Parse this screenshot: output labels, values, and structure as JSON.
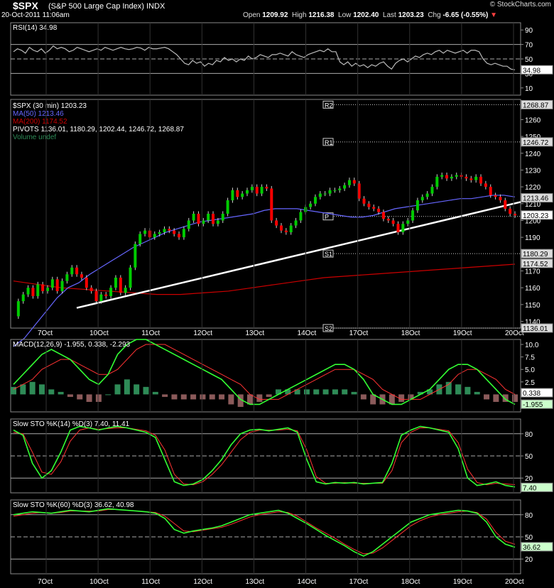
{
  "header": {
    "symbol": "$SPX",
    "subtitle": "(S&P 500 Large Cap Index) INDX",
    "datetime": "20-Oct-2011 11:06am",
    "watermark": "© StockCharts.com",
    "open_label": "Open",
    "open": "1209.92",
    "high_label": "High",
    "high": "1216.38",
    "low_label": "Low",
    "low": "1202.40",
    "last_label": "Last",
    "last": "1203.23",
    "chg_label": "Chg",
    "chg": "-6.65 (-0.55%)"
  },
  "colors": {
    "price_up": "#00cc00",
    "price_down": "#ff0000",
    "ma50": "#6666ff",
    "ma200": "#cc0000",
    "trendline": "#ffffff",
    "macd": "#33ff33",
    "signal": "#ff3333",
    "hist_pos": "#2e8b57",
    "hist_neg": "#8b5a5a"
  },
  "chart_data": [
    {
      "type": "line",
      "title": "RSI(14) 34.98",
      "ylim": [
        0,
        100
      ],
      "yticks": [
        10,
        30,
        50,
        70,
        90
      ],
      "last_label": "34.98",
      "series": [
        {
          "name": "RSI(14)",
          "values": [
            60,
            64,
            62,
            58,
            66,
            62,
            60,
            64,
            58,
            62,
            68,
            64,
            66,
            64,
            60,
            62,
            66,
            64,
            62,
            60,
            62,
            64,
            62,
            66,
            64,
            62,
            64,
            66,
            64,
            63,
            64,
            66,
            65,
            62,
            66,
            64,
            64,
            65,
            66,
            64,
            60,
            56,
            50,
            44,
            42,
            48,
            44,
            46,
            40,
            44,
            42,
            48,
            46,
            52,
            48,
            50,
            46,
            50,
            48,
            54,
            50,
            52,
            56,
            54,
            52,
            56,
            56,
            58,
            56,
            54,
            60,
            56,
            54,
            52,
            56,
            58,
            60,
            62,
            60,
            64,
            60,
            60,
            46,
            42,
            46,
            40,
            44,
            40,
            42,
            38,
            42,
            40,
            44,
            46,
            40,
            36,
            44,
            48,
            50,
            46,
            50,
            54,
            52,
            56,
            58,
            56,
            60,
            62,
            58,
            62,
            60,
            58,
            60,
            62,
            58,
            62,
            62,
            60,
            50,
            44,
            42,
            44,
            42,
            40,
            40,
            36,
            35
          ]
        }
      ]
    },
    {
      "type": "line",
      "title": "$SPX (30 min) 1203.23",
      "legend": [
        "MA(50) 1213.46",
        "MA(200) 1174.52",
        "PIVOTS 1136.01, 1180.29, 1202.44, 1246.72, 1268.87",
        "Volume undef"
      ],
      "ylim": [
        1136,
        1272
      ],
      "yticks": [
        1140,
        1150,
        1160,
        1170,
        1180,
        1190,
        1200,
        1210,
        1220,
        1230,
        1240,
        1250,
        1260
      ],
      "categories": [
        "7Oct",
        "10Oct",
        "11Oct",
        "12Oct",
        "13Oct",
        "14Oct",
        "17Oct",
        "18Oct",
        "19Oct",
        "20Oct"
      ],
      "price_values": [
        1143,
        1152,
        1156,
        1160,
        1155,
        1162,
        1158,
        1160,
        1165,
        1158,
        1164,
        1168,
        1172,
        1168,
        1166,
        1160,
        1158,
        1152,
        1156,
        1155,
        1160,
        1166,
        1157,
        1160,
        1172,
        1186,
        1192,
        1194,
        1190,
        1192,
        1193,
        1195,
        1194,
        1192,
        1190,
        1195,
        1200,
        1204,
        1198,
        1200,
        1204,
        1198,
        1200,
        1204,
        1212,
        1218,
        1214,
        1216,
        1218,
        1220,
        1216,
        1220,
        1219,
        1200,
        1197,
        1194,
        1193,
        1197,
        1200,
        1205,
        1208,
        1210,
        1214,
        1216,
        1216,
        1218,
        1218,
        1219,
        1221,
        1224,
        1222,
        1213,
        1210,
        1208,
        1207,
        1205,
        1201,
        1200,
        1198,
        1193,
        1198,
        1200,
        1206,
        1212,
        1214,
        1216,
        1220,
        1226,
        1227,
        1225,
        1226,
        1227,
        1226,
        1225,
        1224,
        1226,
        1222,
        1220,
        1215,
        1214,
        1212,
        1207,
        1204,
        1203
      ],
      "ma50_values": [
        1125,
        1130,
        1138,
        1146,
        1154,
        1160,
        1163,
        1168,
        1172,
        1176,
        1180,
        1184,
        1187,
        1190,
        1193,
        1195,
        1197,
        1199,
        1200,
        1201,
        1202,
        1203,
        1204,
        1206,
        1207,
        1207,
        1207,
        1206,
        1205,
        1204,
        1203,
        1202,
        1202,
        1203,
        1205,
        1207,
        1208,
        1209,
        1210,
        1211,
        1212,
        1213,
        1213,
        1214,
        1215,
        1215,
        1214
      ],
      "ma200_values": [
        1164,
        1162,
        1160,
        1159,
        1158,
        1157,
        1156,
        1156,
        1157,
        1158,
        1160,
        1162,
        1164,
        1166,
        1167,
        1168,
        1169,
        1170,
        1171,
        1172,
        1173,
        1174
      ],
      "pivots": {
        "S2": 1136.01,
        "S1": 1180.29,
        "P": 1202.44,
        "R1": 1246.72,
        "R2": 1268.87
      },
      "pivot_labels": [
        "S2",
        "S1",
        "P",
        "R1",
        "R2"
      ],
      "trendline": [
        [
          0,
          1148
        ],
        [
          1,
          1211
        ]
      ],
      "right_labels": [
        "1268.87",
        "1246.72",
        "1213.46",
        "1203.23",
        "1180.29",
        "1174.52",
        "1136.01"
      ]
    },
    {
      "type": "line",
      "title": "MACD(12,26,9) -1.955, 0.338, -2.293",
      "ylim": [
        -3.5,
        11
      ],
      "yticks": [
        0.0,
        2.5,
        5.0,
        7.5,
        10.0
      ],
      "macd_values": [
        2,
        4,
        6,
        8,
        9,
        8,
        7,
        5,
        3,
        2,
        4,
        8,
        10,
        11,
        11,
        10,
        9,
        8,
        7,
        6,
        5,
        4,
        3,
        1,
        -1,
        -2,
        -2,
        -1,
        0,
        1,
        2,
        3,
        4,
        5,
        6,
        6,
        5,
        3,
        0,
        -1,
        -2,
        -2,
        -1,
        0,
        1,
        3,
        5,
        6,
        6,
        5,
        3,
        1,
        -1,
        -2
      ],
      "signal_values": [
        1,
        2,
        3,
        5,
        6,
        7,
        7,
        6,
        5,
        4,
        4,
        5,
        7,
        9,
        10,
        10,
        10,
        9,
        8,
        7,
        6,
        5,
        4,
        3,
        2,
        0,
        -1,
        -1,
        -1,
        0,
        1,
        2,
        3,
        4,
        5,
        5,
        5,
        4,
        3,
        1,
        0,
        -1,
        -1,
        -1,
        0,
        1,
        2,
        4,
        5,
        5,
        4,
        3,
        1,
        0
      ],
      "hist_values": [
        1.5,
        2,
        2.5,
        2,
        1,
        0.5,
        -0.5,
        -1,
        -1.5,
        -1.5,
        0,
        2,
        3,
        2,
        1.5,
        0.5,
        -0.5,
        -1,
        -1,
        -1,
        -1,
        -1,
        -1,
        -2,
        -2.5,
        -2,
        -1.5,
        -0.5,
        1,
        1,
        1,
        1,
        1,
        1,
        1,
        1,
        0.5,
        -1,
        -2,
        -2,
        -2,
        -1.5,
        -1,
        0.5,
        1,
        2,
        2.5,
        2,
        1.5,
        0.5,
        -1,
        -1.5,
        -1.5,
        -1.5
      ],
      "last_labels": [
        "0.338",
        "-1.955"
      ]
    },
    {
      "type": "line",
      "title": "Slow STO %K(14) %D(3) 7.40, 11.41",
      "ylim": [
        0,
        100
      ],
      "yticks": [
        20,
        50,
        80
      ],
      "k_values": [
        85,
        78,
        40,
        20,
        30,
        55,
        85,
        90,
        88,
        85,
        88,
        90,
        88,
        85,
        82,
        75,
        45,
        15,
        10,
        12,
        18,
        30,
        45,
        65,
        80,
        85,
        86,
        84,
        86,
        88,
        82,
        45,
        15,
        12,
        14,
        13,
        14,
        12,
        13,
        14,
        40,
        78,
        85,
        90,
        88,
        85,
        82,
        60,
        20,
        10,
        12,
        15,
        10,
        8
      ],
      "d_values": [
        82,
        80,
        55,
        28,
        25,
        42,
        70,
        85,
        88,
        86,
        87,
        88,
        88,
        86,
        84,
        78,
        58,
        25,
        12,
        11,
        15,
        25,
        38,
        55,
        72,
        82,
        85,
        85,
        85,
        86,
        84,
        58,
        22,
        13,
        13,
        14,
        13,
        13,
        13,
        13,
        30,
        68,
        82,
        88,
        88,
        86,
        84,
        68,
        32,
        14,
        11,
        13,
        12,
        11
      ],
      "last_label": "7.40"
    },
    {
      "type": "line",
      "title": "Slow STO %K(60) %D(3) 36.62, 40.98",
      "ylim": [
        0,
        100
      ],
      "yticks": [
        20,
        50,
        80
      ],
      "k_values": [
        80,
        82,
        84,
        83,
        82,
        84,
        86,
        85,
        84,
        86,
        88,
        87,
        86,
        85,
        84,
        82,
        75,
        60,
        55,
        58,
        60,
        62,
        65,
        70,
        75,
        80,
        82,
        84,
        86,
        82,
        75,
        68,
        60,
        52,
        45,
        38,
        30,
        24,
        30,
        40,
        50,
        60,
        70,
        75,
        80,
        82,
        84,
        86,
        85,
        82,
        70,
        50,
        40,
        36
      ],
      "d_values": [
        78,
        80,
        82,
        83,
        82,
        83,
        85,
        85,
        85,
        85,
        87,
        87,
        86,
        85,
        84,
        83,
        78,
        68,
        58,
        57,
        59,
        61,
        63,
        67,
        72,
        77,
        80,
        82,
        84,
        83,
        78,
        70,
        62,
        55,
        48,
        40,
        33,
        27,
        28,
        35,
        45,
        55,
        65,
        72,
        77,
        80,
        82,
        84,
        85,
        83,
        74,
        56,
        44,
        40
      ],
      "last_label": "36.62"
    }
  ]
}
